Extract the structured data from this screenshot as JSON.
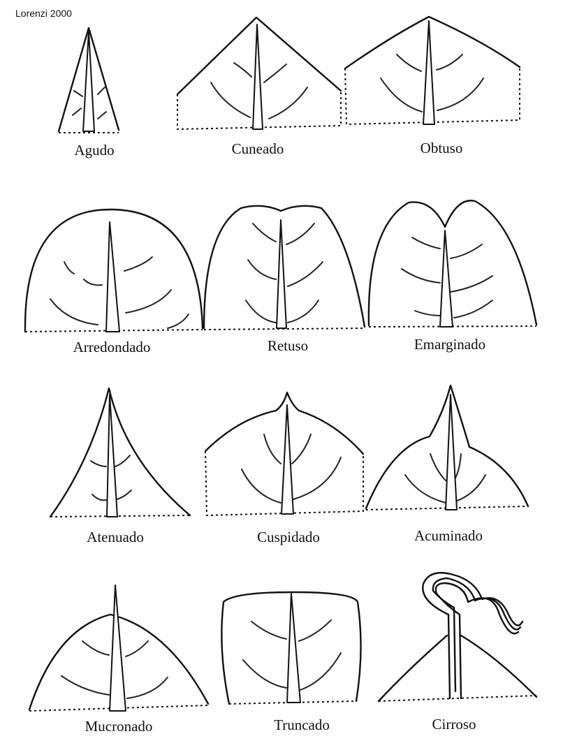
{
  "credit": "Lorenzi 2000",
  "shapes": [
    {
      "label": "Agudo"
    },
    {
      "label": "Cuneado"
    },
    {
      "label": "Obtuso"
    },
    {
      "label": "Arredondado"
    },
    {
      "label": "Retuso"
    },
    {
      "label": "Emarginado"
    },
    {
      "label": "Atenuado"
    },
    {
      "label": "Cuspidado"
    },
    {
      "label": "Acuminado"
    },
    {
      "label": "Mucronado"
    },
    {
      "label": "Truncado"
    },
    {
      "label": "Cirroso"
    }
  ]
}
